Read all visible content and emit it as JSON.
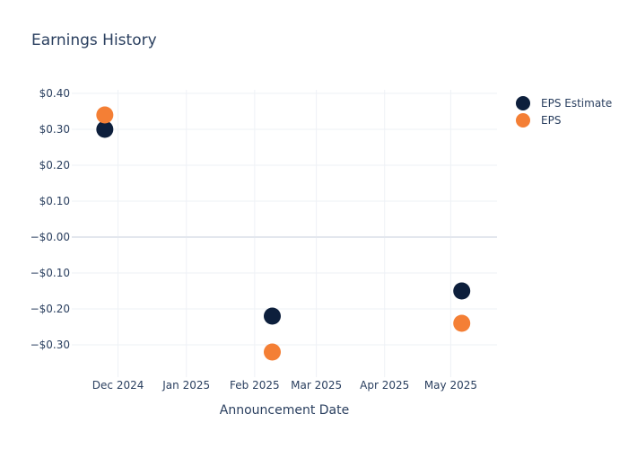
{
  "chart_data": {
    "type": "scatter",
    "title": "Earnings History",
    "xlabel": "Announcement Date",
    "ylabel": "",
    "x_ticks": [
      "2024-12-01",
      "2025-01-01",
      "2025-02-01",
      "2025-03-01",
      "2025-04-01",
      "2025-05-01"
    ],
    "x_tick_labels": [
      "Dec 2024",
      "Jan 2025",
      "Feb 2025",
      "Mar 2025",
      "Apr 2025",
      "May 2025"
    ],
    "xlim": [
      "2024-11-10",
      "2025-05-22"
    ],
    "y_ticks": [
      0.4,
      0.3,
      0.2,
      0.1,
      0,
      -0.1,
      -0.2,
      -0.3
    ],
    "y_tick_labels": [
      "$0.40",
      "$0.30",
      "$0.20",
      "$0.10",
      "−$0.00",
      "−$0.10",
      "−$0.20",
      "−$0.30"
    ],
    "ylim": [
      -0.39,
      0.41
    ],
    "grid": true,
    "legend_position": "top-right",
    "series": [
      {
        "name": "EPS Estimate",
        "color": "#0d1f3c",
        "points": [
          {
            "x": "2024-11-25",
            "y": 0.3
          },
          {
            "x": "2025-02-09",
            "y": -0.22
          },
          {
            "x": "2025-05-06",
            "y": -0.15
          }
        ]
      },
      {
        "name": "EPS",
        "color": "#f47f35",
        "points": [
          {
            "x": "2024-11-25",
            "y": 0.34
          },
          {
            "x": "2025-02-09",
            "y": -0.32
          },
          {
            "x": "2025-05-06",
            "y": -0.24
          }
        ]
      }
    ]
  }
}
